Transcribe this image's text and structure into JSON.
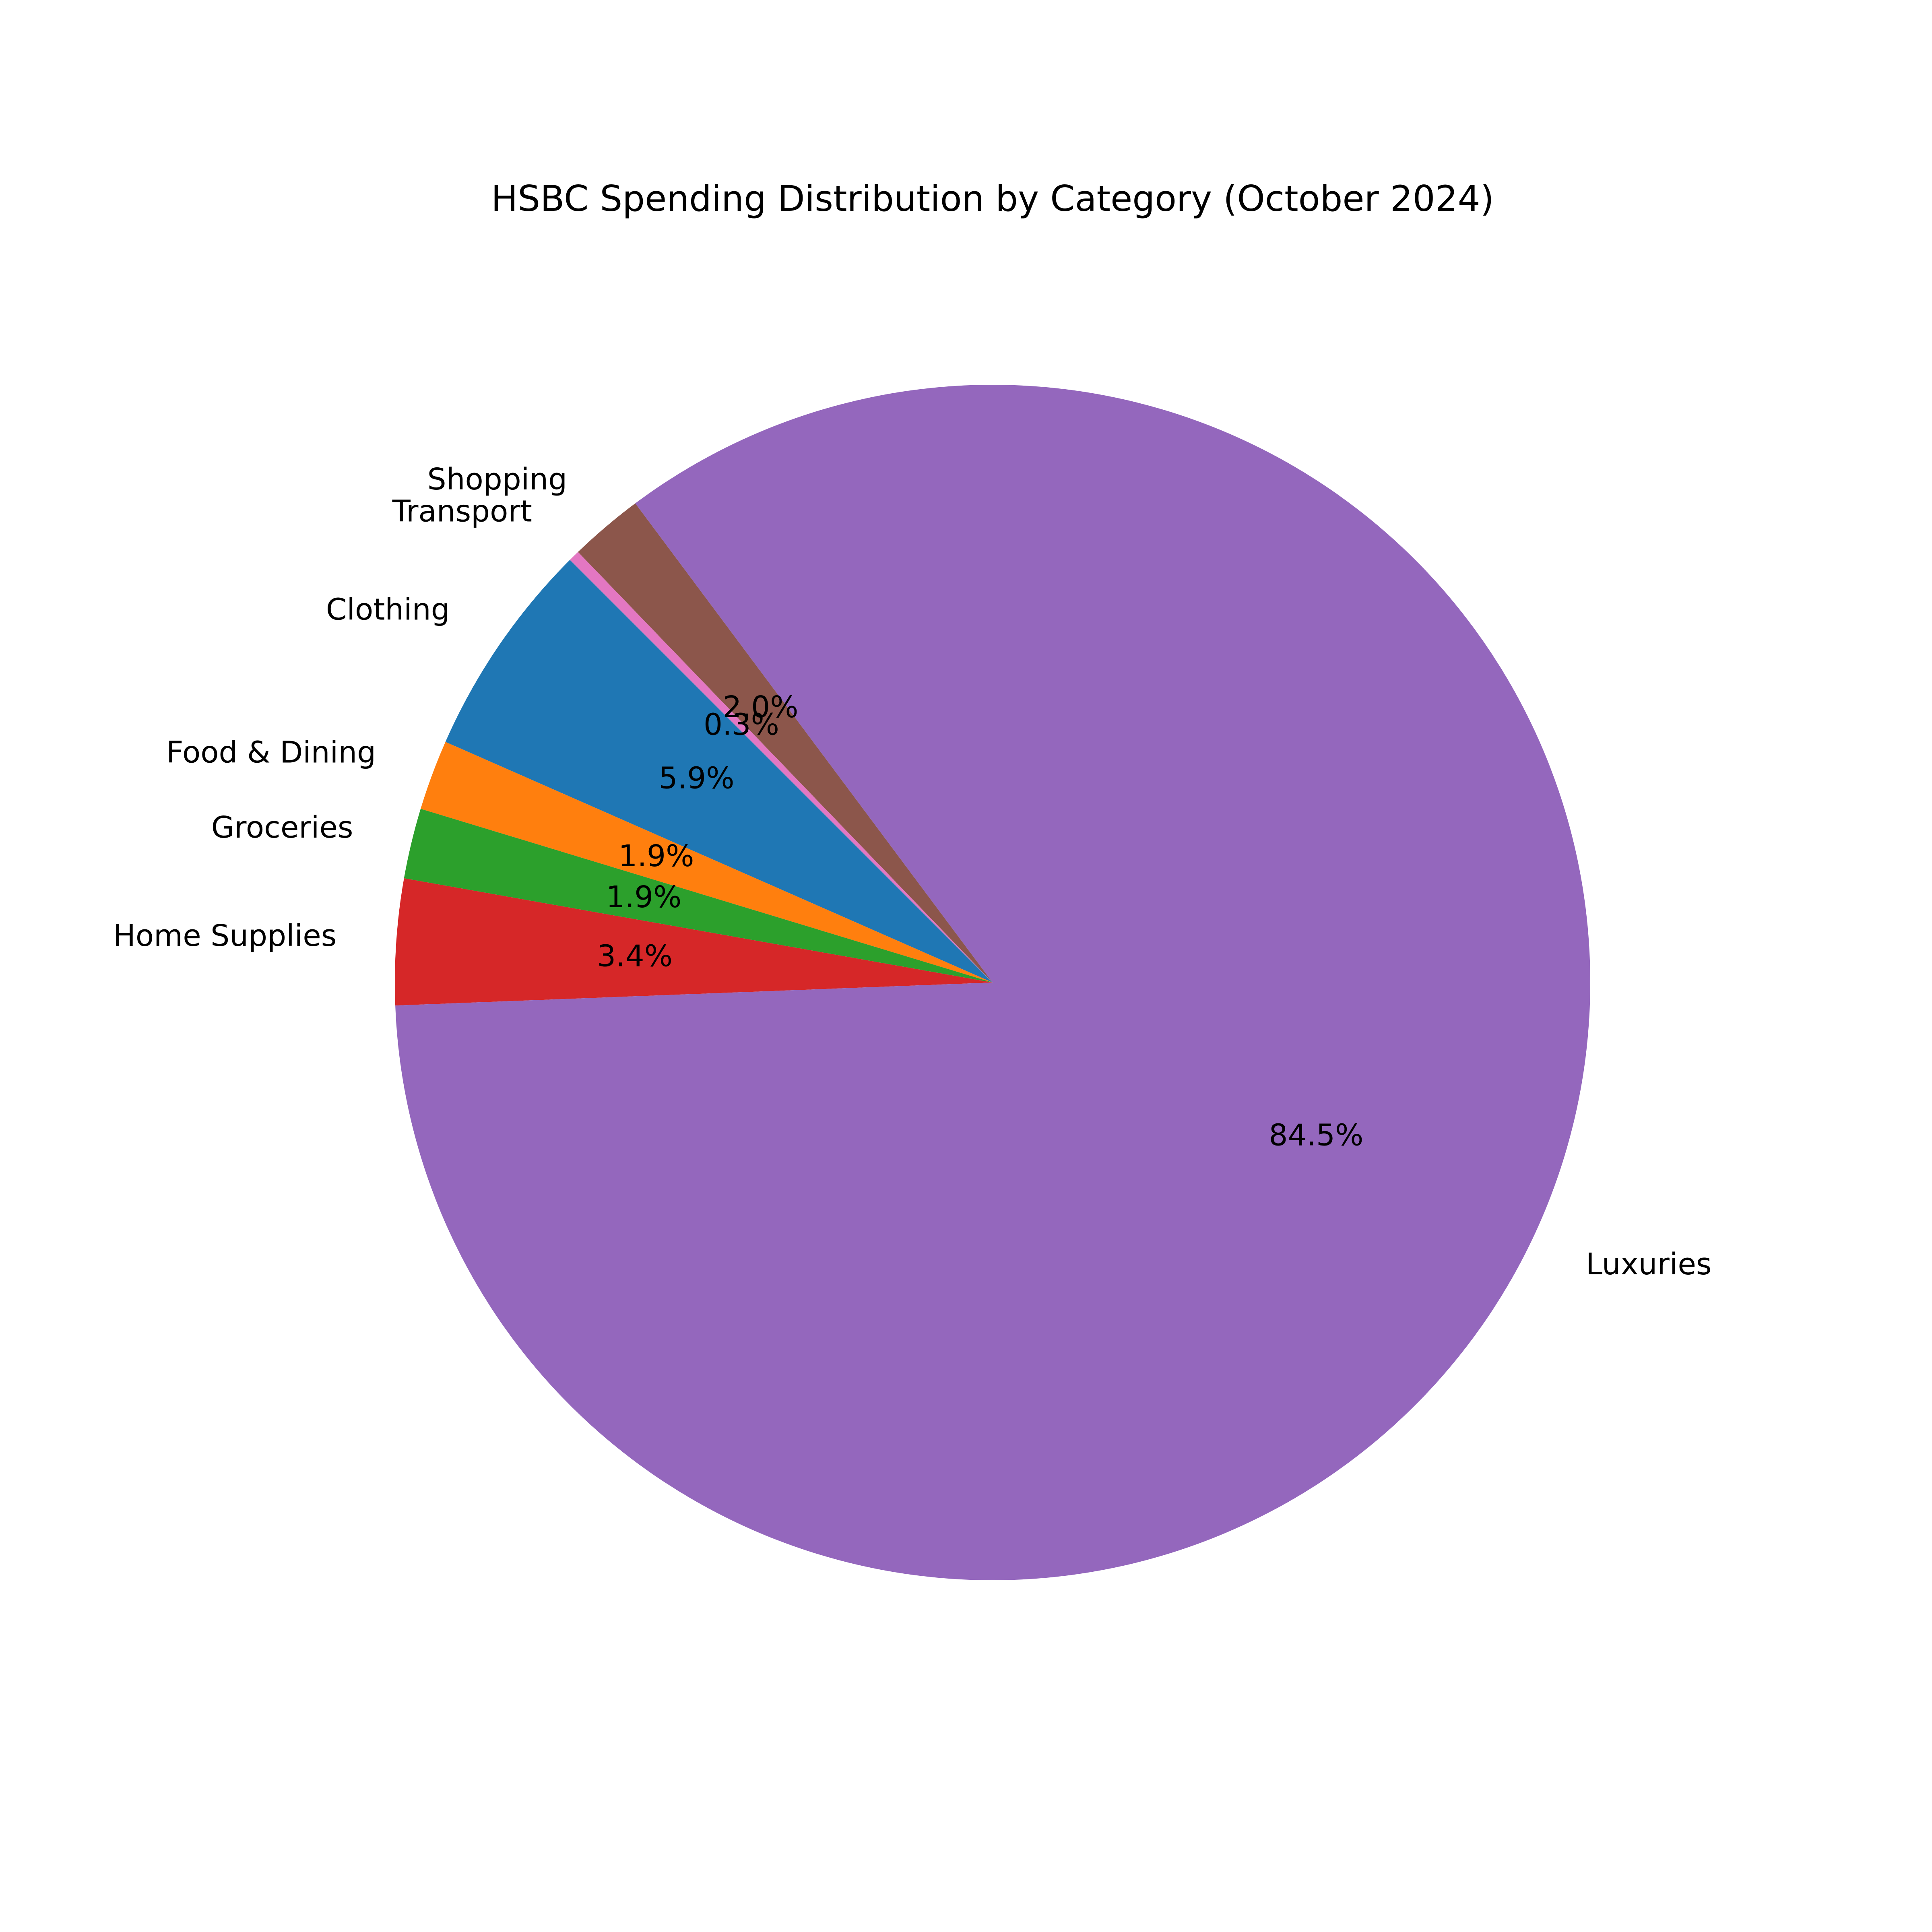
{
  "chart_data": {
    "type": "pie",
    "title": "HSBC Spending Distribution by Category (October 2024)",
    "start_angle_deg": 135,
    "direction": "counterclockwise",
    "slices": [
      {
        "label": "Clothing",
        "value": 5.9,
        "pct_text": "5.9%",
        "color": "#1f77b4"
      },
      {
        "label": "Food & Dining",
        "value": 1.9,
        "pct_text": "1.9%",
        "color": "#ff7f0e"
      },
      {
        "label": "Groceries",
        "value": 1.9,
        "pct_text": "1.9%",
        "color": "#2ca02c"
      },
      {
        "label": "Home Supplies",
        "value": 3.4,
        "pct_text": "3.4%",
        "color": "#d62728"
      },
      {
        "label": "Luxuries",
        "value": 84.5,
        "pct_text": "84.5%",
        "color": "#9467bd"
      },
      {
        "label": "Shopping",
        "value": 2.0,
        "pct_text": "2.0%",
        "color": "#8c564b"
      },
      {
        "label": "Transport",
        "value": 0.3,
        "pct_text": "0.3%",
        "color": "#e377c2"
      }
    ]
  }
}
